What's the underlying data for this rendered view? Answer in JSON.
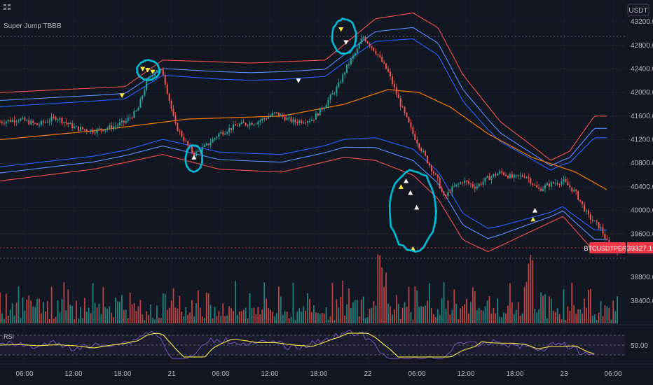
{
  "header": {
    "indicator_name": "Super Jump  TBBB",
    "icon": "chart-icon"
  },
  "price_axis": {
    "currency": "USDT",
    "ticks": [
      43200,
      42800,
      42400,
      42000,
      41600,
      41200,
      40800,
      40400,
      40000,
      39600
    ],
    "current_symbol": "BTCUSDTPERP",
    "current_price": "39327.1",
    "current_color": "#f23645"
  },
  "volume_axis": {
    "ticks": [
      38800,
      38400
    ]
  },
  "rsi_panel": {
    "label": "RSI",
    "tick": "50.00"
  },
  "time_axis": {
    "ticks": [
      "06:00",
      "12:00",
      "18:00",
      "21",
      "06:00",
      "12:00",
      "18:00",
      "22",
      "06:00",
      "12:00",
      "18:00",
      "23",
      "06:00"
    ]
  },
  "colors": {
    "background": "#131722",
    "up": "#26a69a",
    "down": "#ef5350",
    "outer_band": "#ef5350",
    "inner_band": "#2962ff",
    "mid_band": "#5b8cff",
    "ma": "#f57c00",
    "annotation": "#00bcd4",
    "rsi": "#7e57c2",
    "rsi_ma": "#e6d84c",
    "marker_buy": "#ffeb3b",
    "marker_white": "#ffffff"
  },
  "chart_data": {
    "type": "candlestick",
    "symbol": "BTCUSDTPERP",
    "quote": "USDT",
    "x_ticks": [
      "06:00",
      "12:00",
      "18:00",
      "21",
      "06:00",
      "12:00",
      "18:00",
      "22",
      "06:00",
      "12:00",
      "18:00",
      "23",
      "06:00"
    ],
    "y_ticks": [
      43200,
      42800,
      42400,
      42000,
      41600,
      41200,
      40800,
      40400,
      40000,
      39600
    ],
    "ylim": [
      39200,
      43450
    ],
    "price_path": [
      [
        0,
        41500
      ],
      [
        0.03,
        41550
      ],
      [
        0.06,
        41450
      ],
      [
        0.09,
        41580
      ],
      [
        0.12,
        41400
      ],
      [
        0.15,
        41350
      ],
      [
        0.18,
        41420
      ],
      [
        0.2,
        41500
      ],
      [
        0.22,
        41700
      ],
      [
        0.235,
        42200
      ],
      [
        0.25,
        42400
      ],
      [
        0.26,
        42350
      ],
      [
        0.27,
        41900
      ],
      [
        0.28,
        41450
      ],
      [
        0.3,
        41100
      ],
      [
        0.31,
        40950
      ],
      [
        0.33,
        41100
      ],
      [
        0.35,
        41300
      ],
      [
        0.38,
        41450
      ],
      [
        0.41,
        41500
      ],
      [
        0.44,
        41650
      ],
      [
        0.47,
        41500
      ],
      [
        0.5,
        41550
      ],
      [
        0.52,
        41800
      ],
      [
        0.54,
        42100
      ],
      [
        0.555,
        42450
      ],
      [
        0.57,
        42700
      ],
      [
        0.58,
        42950
      ],
      [
        0.6,
        42700
      ],
      [
        0.62,
        42350
      ],
      [
        0.64,
        41800
      ],
      [
        0.66,
        41300
      ],
      [
        0.68,
        40900
      ],
      [
        0.7,
        40500
      ],
      [
        0.71,
        40200
      ],
      [
        0.72,
        40350
      ],
      [
        0.74,
        40500
      ],
      [
        0.76,
        40400
      ],
      [
        0.78,
        40550
      ],
      [
        0.8,
        40650
      ],
      [
        0.82,
        40550
      ],
      [
        0.84,
        40600
      ],
      [
        0.86,
        40350
      ],
      [
        0.88,
        40450
      ],
      [
        0.9,
        40500
      ],
      [
        0.92,
        40300
      ],
      [
        0.94,
        39900
      ],
      [
        0.96,
        39700
      ],
      [
        0.975,
        39350
      ],
      [
        0.99,
        39327.1
      ]
    ],
    "series": [
      {
        "name": "",
        "role": "outer-upper",
        "path": [
          [
            0,
            42000
          ],
          [
            0.2,
            42100
          ],
          [
            0.26,
            42550
          ],
          [
            0.4,
            42500
          ],
          [
            0.52,
            42550
          ],
          [
            0.6,
            43250
          ],
          [
            0.66,
            43350
          ],
          [
            0.7,
            43100
          ],
          [
            0.74,
            42300
          ],
          [
            0.8,
            41500
          ],
          [
            0.85,
            41100
          ],
          [
            0.88,
            40850
          ],
          [
            0.91,
            41000
          ],
          [
            0.95,
            41600
          ]
        ]
      },
      {
        "name": "",
        "role": "outer-lower",
        "path": [
          [
            0,
            40500
          ],
          [
            0.15,
            40700
          ],
          [
            0.26,
            40950
          ],
          [
            0.35,
            40700
          ],
          [
            0.45,
            40650
          ],
          [
            0.55,
            40900
          ],
          [
            0.6,
            40850
          ],
          [
            0.66,
            40600
          ],
          [
            0.7,
            40200
          ],
          [
            0.74,
            39500
          ],
          [
            0.78,
            39300
          ],
          [
            0.84,
            39600
          ],
          [
            0.9,
            39900
          ],
          [
            0.95,
            39300
          ]
        ]
      },
      {
        "name": "",
        "role": "ma",
        "path": [
          [
            0,
            41200
          ],
          [
            0.15,
            41350
          ],
          [
            0.3,
            41550
          ],
          [
            0.45,
            41600
          ],
          [
            0.55,
            41800
          ],
          [
            0.62,
            42050
          ],
          [
            0.67,
            42000
          ],
          [
            0.72,
            41750
          ],
          [
            0.78,
            41300
          ],
          [
            0.85,
            40900
          ],
          [
            0.92,
            40650
          ],
          [
            0.97,
            40350
          ]
        ]
      }
    ],
    "markers": [
      {
        "x": 0.195,
        "price": 41950,
        "kind": "down",
        "color": "yellow"
      },
      {
        "x": 0.228,
        "price": 42400,
        "kind": "down",
        "color": "yellow"
      },
      {
        "x": 0.236,
        "price": 42380,
        "kind": "down",
        "color": "yellow"
      },
      {
        "x": 0.244,
        "price": 42350,
        "kind": "down",
        "color": "yellow"
      },
      {
        "x": 0.31,
        "price": 40900,
        "kind": "up",
        "color": "white"
      },
      {
        "x": 0.477,
        "price": 42200,
        "kind": "down",
        "color": "white"
      },
      {
        "x": 0.545,
        "price": 43070,
        "kind": "down",
        "color": "yellow"
      },
      {
        "x": 0.553,
        "price": 42850,
        "kind": "down",
        "color": "white"
      },
      {
        "x": 0.641,
        "price": 40400,
        "kind": "up",
        "color": "yellow"
      },
      {
        "x": 0.649,
        "price": 40500,
        "kind": "up",
        "color": "white"
      },
      {
        "x": 0.656,
        "price": 40300,
        "kind": "up",
        "color": "white"
      },
      {
        "x": 0.666,
        "price": 40050,
        "kind": "up",
        "color": "white"
      },
      {
        "x": 0.66,
        "price": 39350,
        "kind": "up",
        "color": "yellow"
      },
      {
        "x": 0.855,
        "price": 40000,
        "kind": "up",
        "color": "white"
      },
      {
        "x": 0.852,
        "price": 39850,
        "kind": "up",
        "color": "yellow"
      }
    ],
    "rsi_reference": 50
  }
}
